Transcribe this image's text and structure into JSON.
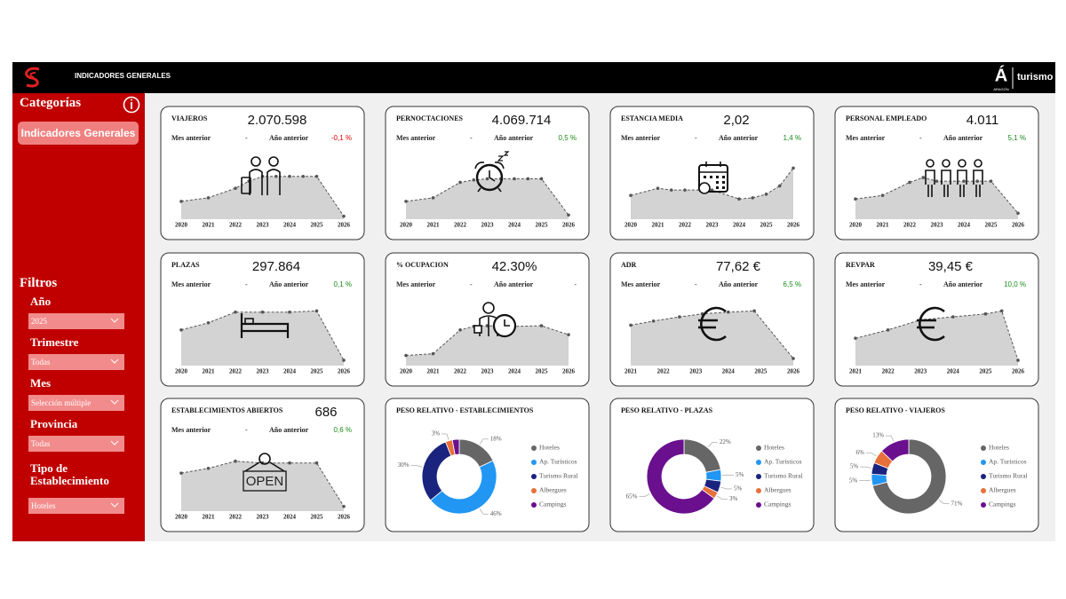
{
  "header": {
    "title": "INDICADORES GENERALES",
    "brand_mark": "Á",
    "brand_region": "ARAGÓN",
    "brand": "turismo"
  },
  "sidebar": {
    "categories_title": "Categorías",
    "category_button": "Indicadores Generales",
    "filters_title": "Filtros",
    "filters": [
      {
        "label": "Año",
        "value": "2025"
      },
      {
        "label": "Trimestre",
        "value": "Todas"
      },
      {
        "label": "Mes",
        "value": "Selección múltiple"
      },
      {
        "label": "Provincia",
        "value": "Todas"
      },
      {
        "label": "Tipo de Establecimiento",
        "value": "Hoteles"
      }
    ]
  },
  "chart_data": [
    {
      "type": "area",
      "title": "VIAJEROS",
      "kpi": "2.070.598",
      "prev_month_label": "Mes anterior",
      "prev_month": "-",
      "prev_year_label": "Año anterior",
      "prev_year": "-0,1 %",
      "change_color": "#e00000",
      "color": "#d3d3d3",
      "x": [
        2020,
        2021,
        2022,
        2022.5,
        2023,
        2023.5,
        2024,
        2024.5,
        2025,
        2026
      ],
      "values": [
        30,
        36,
        52,
        64,
        72,
        72,
        72,
        72,
        72,
        5
      ],
      "xlim": [
        2020,
        2026
      ],
      "ylim": [
        0,
        100
      ],
      "xticks": [
        2020,
        2021,
        2022,
        2023,
        2024,
        2025,
        2026
      ]
    },
    {
      "type": "area",
      "title": "PERNOCTACIONES",
      "kpi": "4.069.714",
      "prev_month_label": "Mes anterior",
      "prev_month": "-",
      "prev_year_label": "Año anterior",
      "prev_year": "0,5 %",
      "change_color": "#1a8a1a",
      "color": "#d3d3d3",
      "x": [
        2020,
        2021,
        2022,
        2022.5,
        2023,
        2023.5,
        2024,
        2024.5,
        2025,
        2026
      ],
      "values": [
        30,
        36,
        62,
        66,
        68,
        68,
        68,
        68,
        68,
        7
      ],
      "xlim": [
        2020,
        2026
      ],
      "ylim": [
        0,
        100
      ],
      "xticks": [
        2020,
        2021,
        2022,
        2023,
        2024,
        2025,
        2026
      ]
    },
    {
      "type": "area",
      "title": "ESTANCIA MEDIA",
      "kpi": "2,02",
      "prev_month_label": "Mes anterior",
      "prev_month": "-",
      "prev_year_label": "Año anterior",
      "prev_year": "1,4 %",
      "change_color": "#1a8a1a",
      "color": "#d3d3d3",
      "x": [
        2020,
        2021,
        2021.5,
        2022,
        2023,
        2024,
        2024.5,
        2025,
        2025.5,
        2026
      ],
      "values": [
        40,
        52,
        49,
        49,
        49,
        34,
        36,
        42,
        56,
        86
      ],
      "xlim": [
        2020,
        2026
      ],
      "ylim": [
        0,
        100
      ],
      "xticks": [
        2020,
        2021,
        2022,
        2023,
        2024,
        2025,
        2026
      ]
    },
    {
      "type": "area",
      "title": "PERSONAL EMPLEADO",
      "kpi": "4.011",
      "prev_month_label": "Mes anterior",
      "prev_month": "-",
      "prev_year_label": "Año anterior",
      "prev_year": "5,1 %",
      "change_color": "#1a8a1a",
      "color": "#d3d3d3",
      "x": [
        2020,
        2021,
        2022,
        2022.5,
        2023,
        2024,
        2024.5,
        2025,
        2026
      ],
      "values": [
        34,
        40,
        62,
        70,
        64,
        64,
        64,
        64,
        10
      ],
      "xlim": [
        2020,
        2026
      ],
      "ylim": [
        0,
        100
      ],
      "xticks": [
        2020,
        2021,
        2022,
        2023,
        2024,
        2025,
        2026
      ]
    },
    {
      "type": "area",
      "title": "PLAZAS",
      "kpi": "297.864",
      "prev_month_label": "Mes anterior",
      "prev_month": "-",
      "prev_year_label": "Año anterior",
      "prev_year": "0,1 %",
      "change_color": "#1a8a1a",
      "color": "#d3d3d3",
      "x": [
        2020,
        2021,
        2022,
        2023,
        2024,
        2025,
        2026
      ],
      "values": [
        60,
        72,
        90,
        90,
        90,
        92,
        9
      ],
      "xlim": [
        2020,
        2026
      ],
      "ylim": [
        0,
        100
      ],
      "xticks": [
        2020,
        2021,
        2022,
        2023,
        2024,
        2025,
        2026
      ]
    },
    {
      "type": "area",
      "title": "% OCUPACION",
      "kpi": "42.30%",
      "prev_month_label": "Mes anterior",
      "prev_month": "-",
      "prev_year_label": "Año anterior",
      "prev_year": "-",
      "change_color": "#333333",
      "color": "#d3d3d3",
      "x": [
        2020,
        2021,
        2022,
        2022.5,
        2023,
        2024,
        2025,
        2026
      ],
      "values": [
        17,
        20,
        60,
        66,
        67,
        66,
        67,
        52
      ],
      "xlim": [
        2020,
        2026
      ],
      "ylim": [
        0,
        100
      ],
      "xticks": [
        2020,
        2021,
        2022,
        2023,
        2024,
        2025,
        2026
      ]
    },
    {
      "type": "area",
      "title": "ADR",
      "kpi": "77,62 €",
      "prev_month_label": "Mes anterior",
      "prev_month": "-",
      "prev_year_label": "Año anterior",
      "prev_year": "6,5 %",
      "change_color": "#1a8a1a",
      "color": "#d3d3d3",
      "x": [
        2021,
        2021.7,
        2022.5,
        2023.2,
        2024,
        2024.8,
        2026
      ],
      "values": [
        68,
        75,
        82,
        87,
        90,
        92,
        12
      ],
      "xlim": [
        2021,
        2026
      ],
      "ylim": [
        0,
        100
      ],
      "xticks": [
        2021,
        2022,
        2023,
        2024,
        2025,
        2026
      ]
    },
    {
      "type": "area",
      "title": "REVPAR",
      "kpi": "39,45 €",
      "prev_month_label": "Mes anterior",
      "prev_month": "-",
      "prev_year_label": "Año anterior",
      "prev_year": "10,0 %",
      "change_color": "#1a8a1a",
      "color": "#d3d3d3",
      "x": [
        2021,
        2022,
        2023,
        2024,
        2025,
        2025.5,
        2026
      ],
      "values": [
        46,
        60,
        77,
        82,
        87,
        92,
        9
      ],
      "xlim": [
        2021,
        2026
      ],
      "ylim": [
        0,
        100
      ],
      "xticks": [
        2021,
        2022,
        2023,
        2024,
        2025,
        2026
      ]
    },
    {
      "type": "area",
      "title": "ESTABLECIMIENTOS ABIERTOS",
      "kpi": "686",
      "prev_month_label": "Mes anterior",
      "prev_month": "-",
      "prev_year_label": "Año anterior",
      "prev_year": "0,6 %",
      "change_color": "#1a8a1a",
      "color": "#d3d3d3",
      "icon_text": "OPEN",
      "x": [
        2020,
        2021,
        2022,
        2023,
        2024,
        2025,
        2026
      ],
      "values": [
        64,
        72,
        84,
        81,
        81,
        81,
        8
      ],
      "xlim": [
        2020,
        2026
      ],
      "ylim": [
        0,
        100
      ],
      "xticks": [
        2020,
        2021,
        2022,
        2023,
        2024,
        2025,
        2026
      ]
    },
    {
      "type": "pie",
      "title": "PESO RELATIVO - ESTABLECIMIENTOS",
      "categories": [
        "Hoteles",
        "Ap. Turísticos",
        "Turismo Rural",
        "Albergues",
        "Campings"
      ],
      "values": [
        18,
        46,
        30,
        3,
        3
      ],
      "value_labels": [
        "18%",
        "46%",
        "30%",
        "3%",
        null
      ],
      "colors": [
        "#666666",
        "#2196f3",
        "#1a237e",
        "#e8703a",
        "#6a0f8e"
      ]
    },
    {
      "type": "pie",
      "title": "PESO RELATIVO - PLAZAS",
      "categories": [
        "Hoteles",
        "Ap. Turísticos",
        "Turismo Rural",
        "Albergues",
        "Campings"
      ],
      "values": [
        22,
        5,
        5,
        3,
        65
      ],
      "value_labels": [
        "22%",
        "5%",
        "5%",
        "3%",
        "65%"
      ],
      "colors": [
        "#666666",
        "#2196f3",
        "#1a237e",
        "#e8703a",
        "#6a0f8e"
      ]
    },
    {
      "type": "pie",
      "title": "PESO RELATIVO - VIAJEROS",
      "categories": [
        "Hoteles",
        "Ap. Turísticos",
        "Turismo Rural",
        "Albergues",
        "Campings"
      ],
      "values": [
        71,
        5,
        5,
        6,
        13
      ],
      "value_labels": [
        "71%",
        "5%",
        "5%",
        "6%",
        "13%"
      ],
      "colors": [
        "#666666",
        "#2196f3",
        "#1a237e",
        "#e8703a",
        "#6a0f8e"
      ]
    }
  ]
}
